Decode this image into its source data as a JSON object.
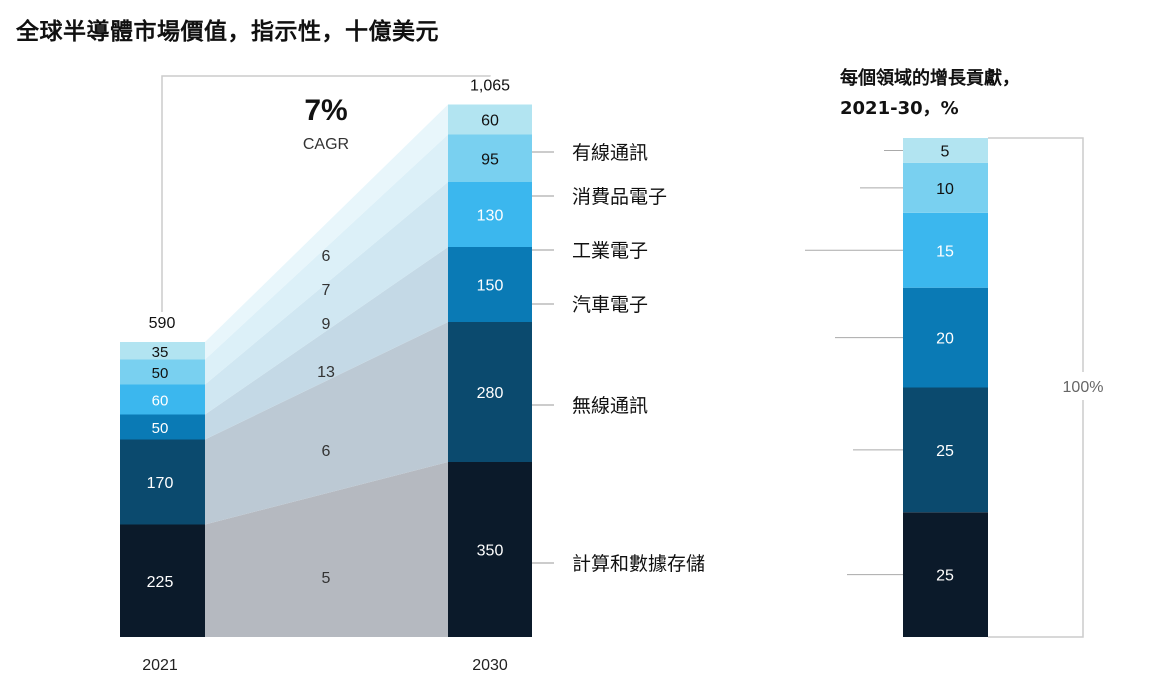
{
  "title": "全球半導體市場價值，指示性，十億美元",
  "chart_data": [
    {
      "type": "bar",
      "stacked": true,
      "categories": [
        "2021",
        "2030"
      ],
      "series": [
        {
          "name": "計算和數據存儲",
          "values": [
            225,
            350
          ],
          "color": "#0b1a2a",
          "cagr": "5"
        },
        {
          "name": "無線通訊",
          "values": [
            170,
            280
          ],
          "color": "#0b4a6e",
          "cagr": "6"
        },
        {
          "name": "汽車電子",
          "values": [
            50,
            150
          ],
          "color": "#0a7ab5",
          "cagr": "13"
        },
        {
          "name": "工業電子",
          "values": [
            60,
            130
          ],
          "color": "#3bb7ee",
          "cagr": "9"
        },
        {
          "name": "消費品電子",
          "values": [
            50,
            95
          ],
          "color": "#79d0f0",
          "cagr": "7"
        },
        {
          "name": "有線通訊",
          "values": [
            35,
            60
          ],
          "color": "#b2e4f1",
          "cagr": "6"
        }
      ],
      "totals": [
        "590",
        "1,065"
      ],
      "cagr_value": "7%",
      "cagr_label": "CAGR"
    },
    {
      "type": "bar",
      "stacked": true,
      "title": "每個領域的增長貢獻，",
      "subtitle": "2021-30，%",
      "values_bottom_to_top": [
        25,
        25,
        20,
        15,
        10,
        5
      ],
      "total_label": "100%"
    }
  ]
}
